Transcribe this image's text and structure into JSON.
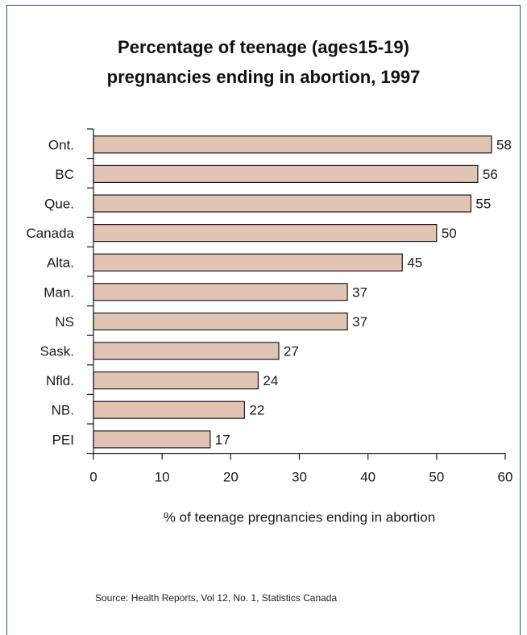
{
  "chart_data": {
    "type": "bar",
    "orientation": "horizontal",
    "title_lines": [
      "Percentage of teenage (ages15-19)",
      "pregnancies ending in abortion, 1997"
    ],
    "categories": [
      "Ont.",
      "BC",
      "Que.",
      "Canada",
      "Alta.",
      "Man.",
      "NS",
      "Sask.",
      "Nfld.",
      "NB.",
      "PEI"
    ],
    "values": [
      58,
      56,
      55,
      50,
      45,
      37,
      37,
      27,
      24,
      22,
      17
    ],
    "xlabel": "% of teenage pregnancies ending in abortion",
    "ylabel": "",
    "xlim": [
      0,
      60
    ],
    "x_ticks": [
      0,
      10,
      20,
      30,
      40,
      50,
      60
    ],
    "data_labels": true,
    "grid": false,
    "legend": "none",
    "colors": {
      "bar_fill": "#e2c4b4",
      "bar_stroke": "#1a1a1a",
      "frame": "#2f4d7a"
    },
    "source": "Source: Health Reports, Vol 12, No. 1, Statistics Canada"
  }
}
